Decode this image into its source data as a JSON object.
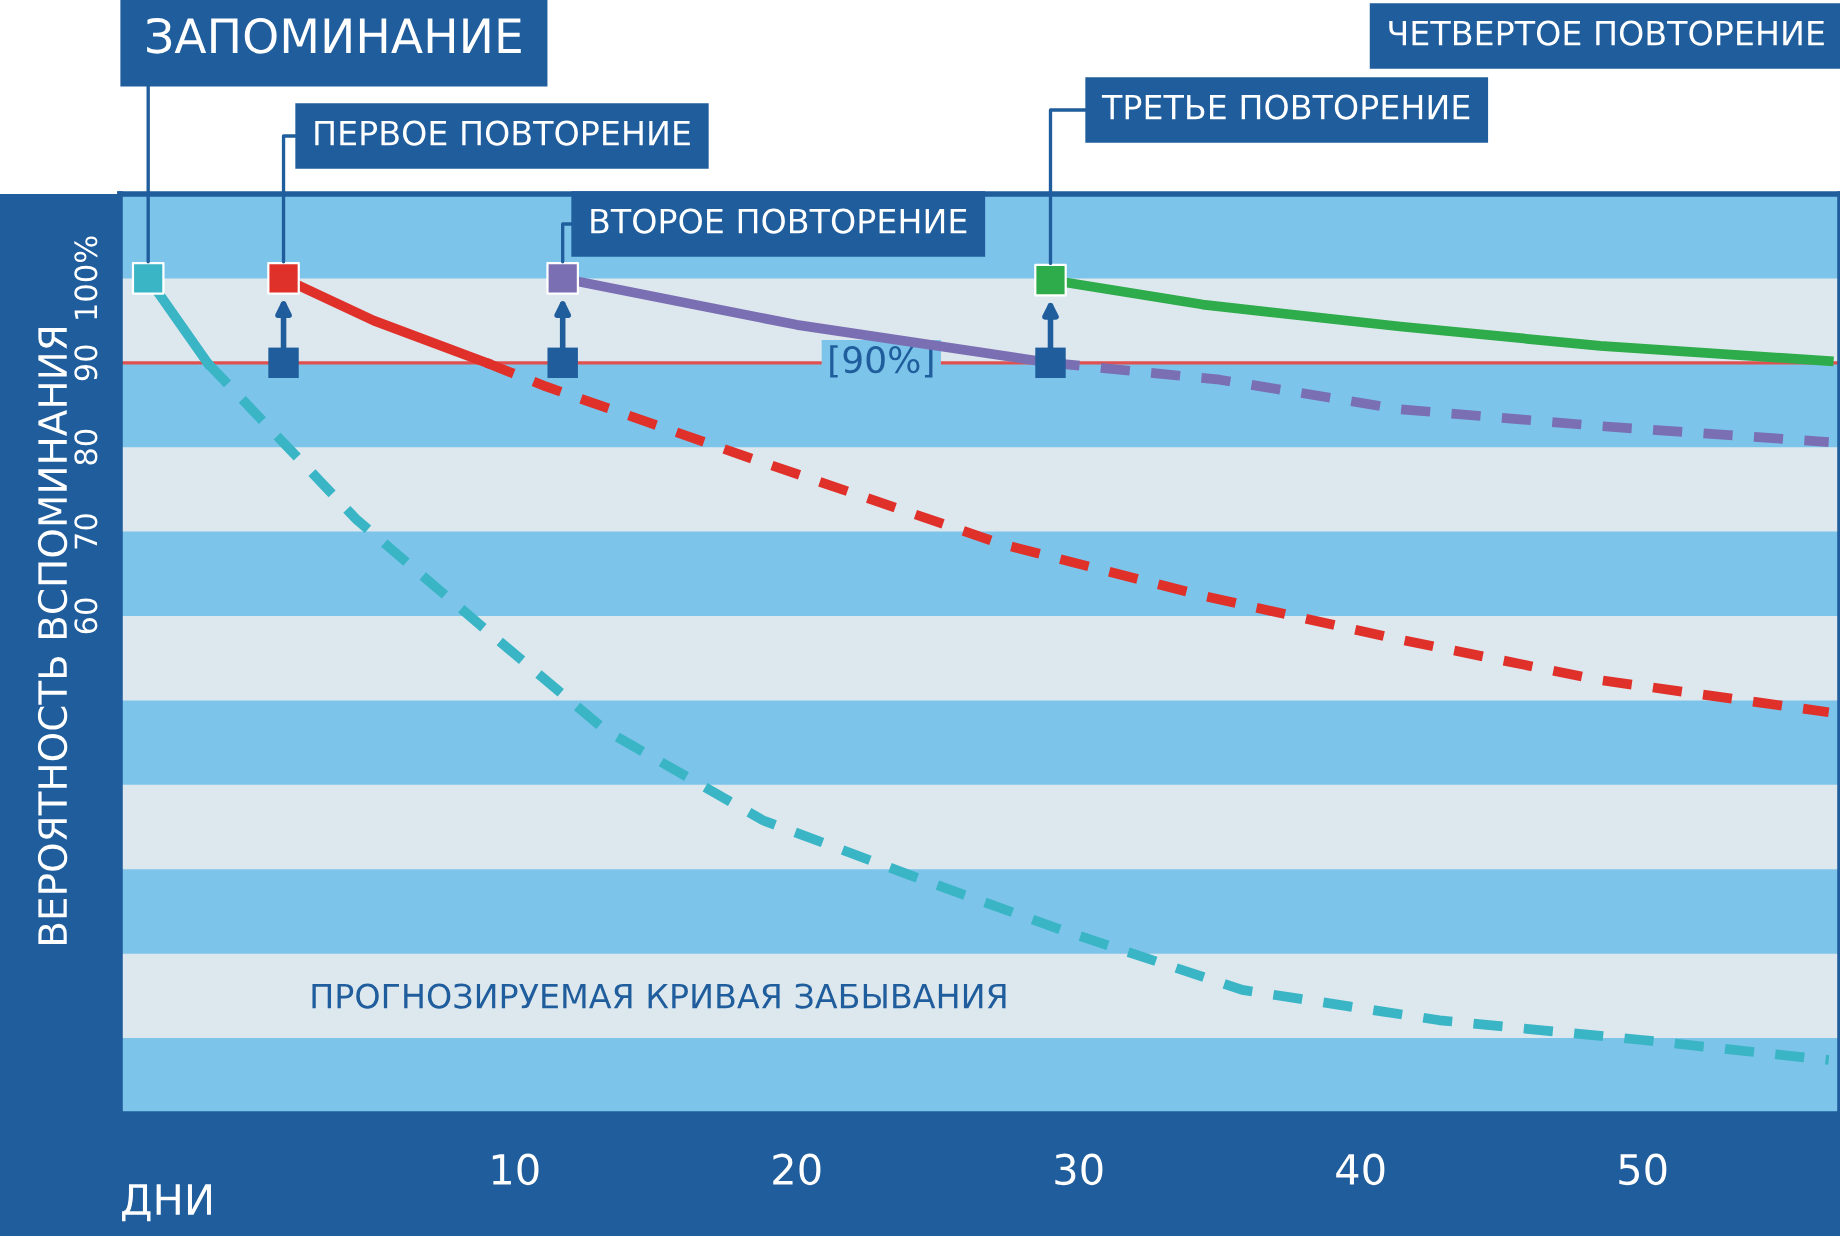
{
  "chart_data": {
    "type": "line",
    "xlabel": "ДНИ",
    "ylabel": "ВЕРОЯТНОСТЬ ВСПОМИНАНИЯ",
    "xlim": [
      -4,
      57
    ],
    "xticks": [
      10,
      20,
      30,
      40,
      50
    ],
    "ylim": [
      1,
      110
    ],
    "yticks": [
      {
        "value": 100,
        "label": "100%"
      },
      90,
      80,
      70,
      60
    ],
    "grid": false,
    "bands": [
      {
        "axis": "y",
        "from": 90,
        "to": 100,
        "label": null,
        "color": "#dde8ee"
      },
      {
        "axis": "y",
        "from": 70,
        "to": 80,
        "label": null,
        "color": "#dde8ee"
      },
      {
        "axis": "y",
        "from": 50,
        "to": 60,
        "label": null,
        "color": "#dde8ee"
      },
      {
        "axis": "y",
        "from": 30,
        "to": 40,
        "label": null,
        "color": "#dde8ee"
      },
      {
        "axis": "y",
        "from": 10,
        "to": 20,
        "label": null,
        "color": "#dde8ee"
      }
    ],
    "ref_lines": [
      {
        "axis": "y",
        "value": 90,
        "label": "[90%]",
        "color": "#e05050",
        "line_style": "solid"
      }
    ],
    "series": [
      {
        "color": "#3ab5c6",
        "line_style": "solid",
        "x": [
          -3,
          -0.9
        ],
        "values": [
          100,
          90
        ]
      },
      {
        "color": "#3ab5c6",
        "line_style": "dashed",
        "marker": "none",
        "x": [
          -0.9,
          4.4,
          9,
          13.2,
          18.8,
          24.5,
          29.4,
          35.8,
          42.8,
          49.9,
          56.6
        ],
        "values": [
          90,
          71.4,
          58.3,
          46.5,
          35.8,
          28.7,
          22.8,
          15.7,
          12.1,
          9.8,
          7.4
        ]
      },
      {
        "color": "#e0302a",
        "line_style": "solid",
        "x": [
          1.8,
          5,
          9
        ],
        "values": [
          100,
          95,
          90
        ]
      },
      {
        "color": "#e0302a",
        "line_style": "dashed",
        "marker": "none",
        "x": [
          9,
          11.1,
          18.1,
          27.3,
          34.4,
          41.4,
          48.5,
          56.6
        ],
        "values": [
          90,
          87.2,
          79,
          68.5,
          62.4,
          57.2,
          52.4,
          48.6
        ]
      },
      {
        "color": "#7b6fb3",
        "line_style": "solid",
        "x": [
          11.7,
          20,
          29
        ],
        "values": [
          100,
          94.5,
          90
        ]
      },
      {
        "color": "#7b6fb3",
        "line_style": "dashed",
        "marker": "none",
        "x": [
          29,
          35,
          41.4,
          48.5,
          56.6
        ],
        "values": [
          90,
          88,
          84.5,
          82.5,
          80.6
        ]
      },
      {
        "color": "#2eab4a",
        "line_style": "solid",
        "x": [
          29,
          34.4,
          41.4,
          48.5,
          56.6
        ],
        "values": [
          99.8,
          96.9,
          94.3,
          92,
          90.2
        ]
      },
      {
        "type": "scatter",
        "colors": [
          "#3ab5c6",
          "#e0302a",
          "#7b6fb3",
          "#2eab4a"
        ],
        "marker": "square",
        "x": [
          -3,
          1.8,
          11.7,
          29
        ],
        "values": [
          100,
          100,
          100,
          99.8
        ]
      },
      {
        "type": "scatter",
        "color": "#1f5d9c",
        "marker": "square",
        "x": [
          1.8,
          11.7,
          29
        ],
        "values": [
          90,
          90,
          90
        ]
      }
    ],
    "annotations": [
      {
        "text": "ЗАПОМИНАНИЕ",
        "x": -3,
        "y": 100
      },
      {
        "text": "ПЕРВОЕ ПОВТОРЕНИЕ",
        "x": 1.8,
        "y": 100
      },
      {
        "text": "ВТОРОЕ ПОВТОРЕНИЕ",
        "x": 11.7,
        "y": 100
      },
      {
        "text": "ТРЕТЬЕ ПОВТОРЕНИЕ",
        "x": 29,
        "y": 99.8
      },
      "ЧЕТВЕРТОЕ ПОВТОРЕНИЕ",
      "ПРОГНОЗИРУЕМАЯ КРИВАЯ ЗАБЫВАНИЯ"
    ]
  }
}
